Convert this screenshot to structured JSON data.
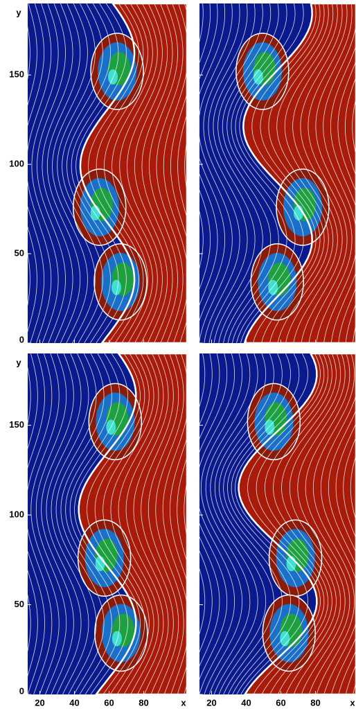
{
  "chart_data": {
    "type": "field",
    "xlabel": "x",
    "ylabel": "y",
    "xlim": [
      13,
      105
    ],
    "xticks": [
      20,
      40,
      60,
      80
    ],
    "ylim": [
      0,
      190
    ],
    "yticks": [
      0,
      50,
      100,
      150
    ]
  }
}
